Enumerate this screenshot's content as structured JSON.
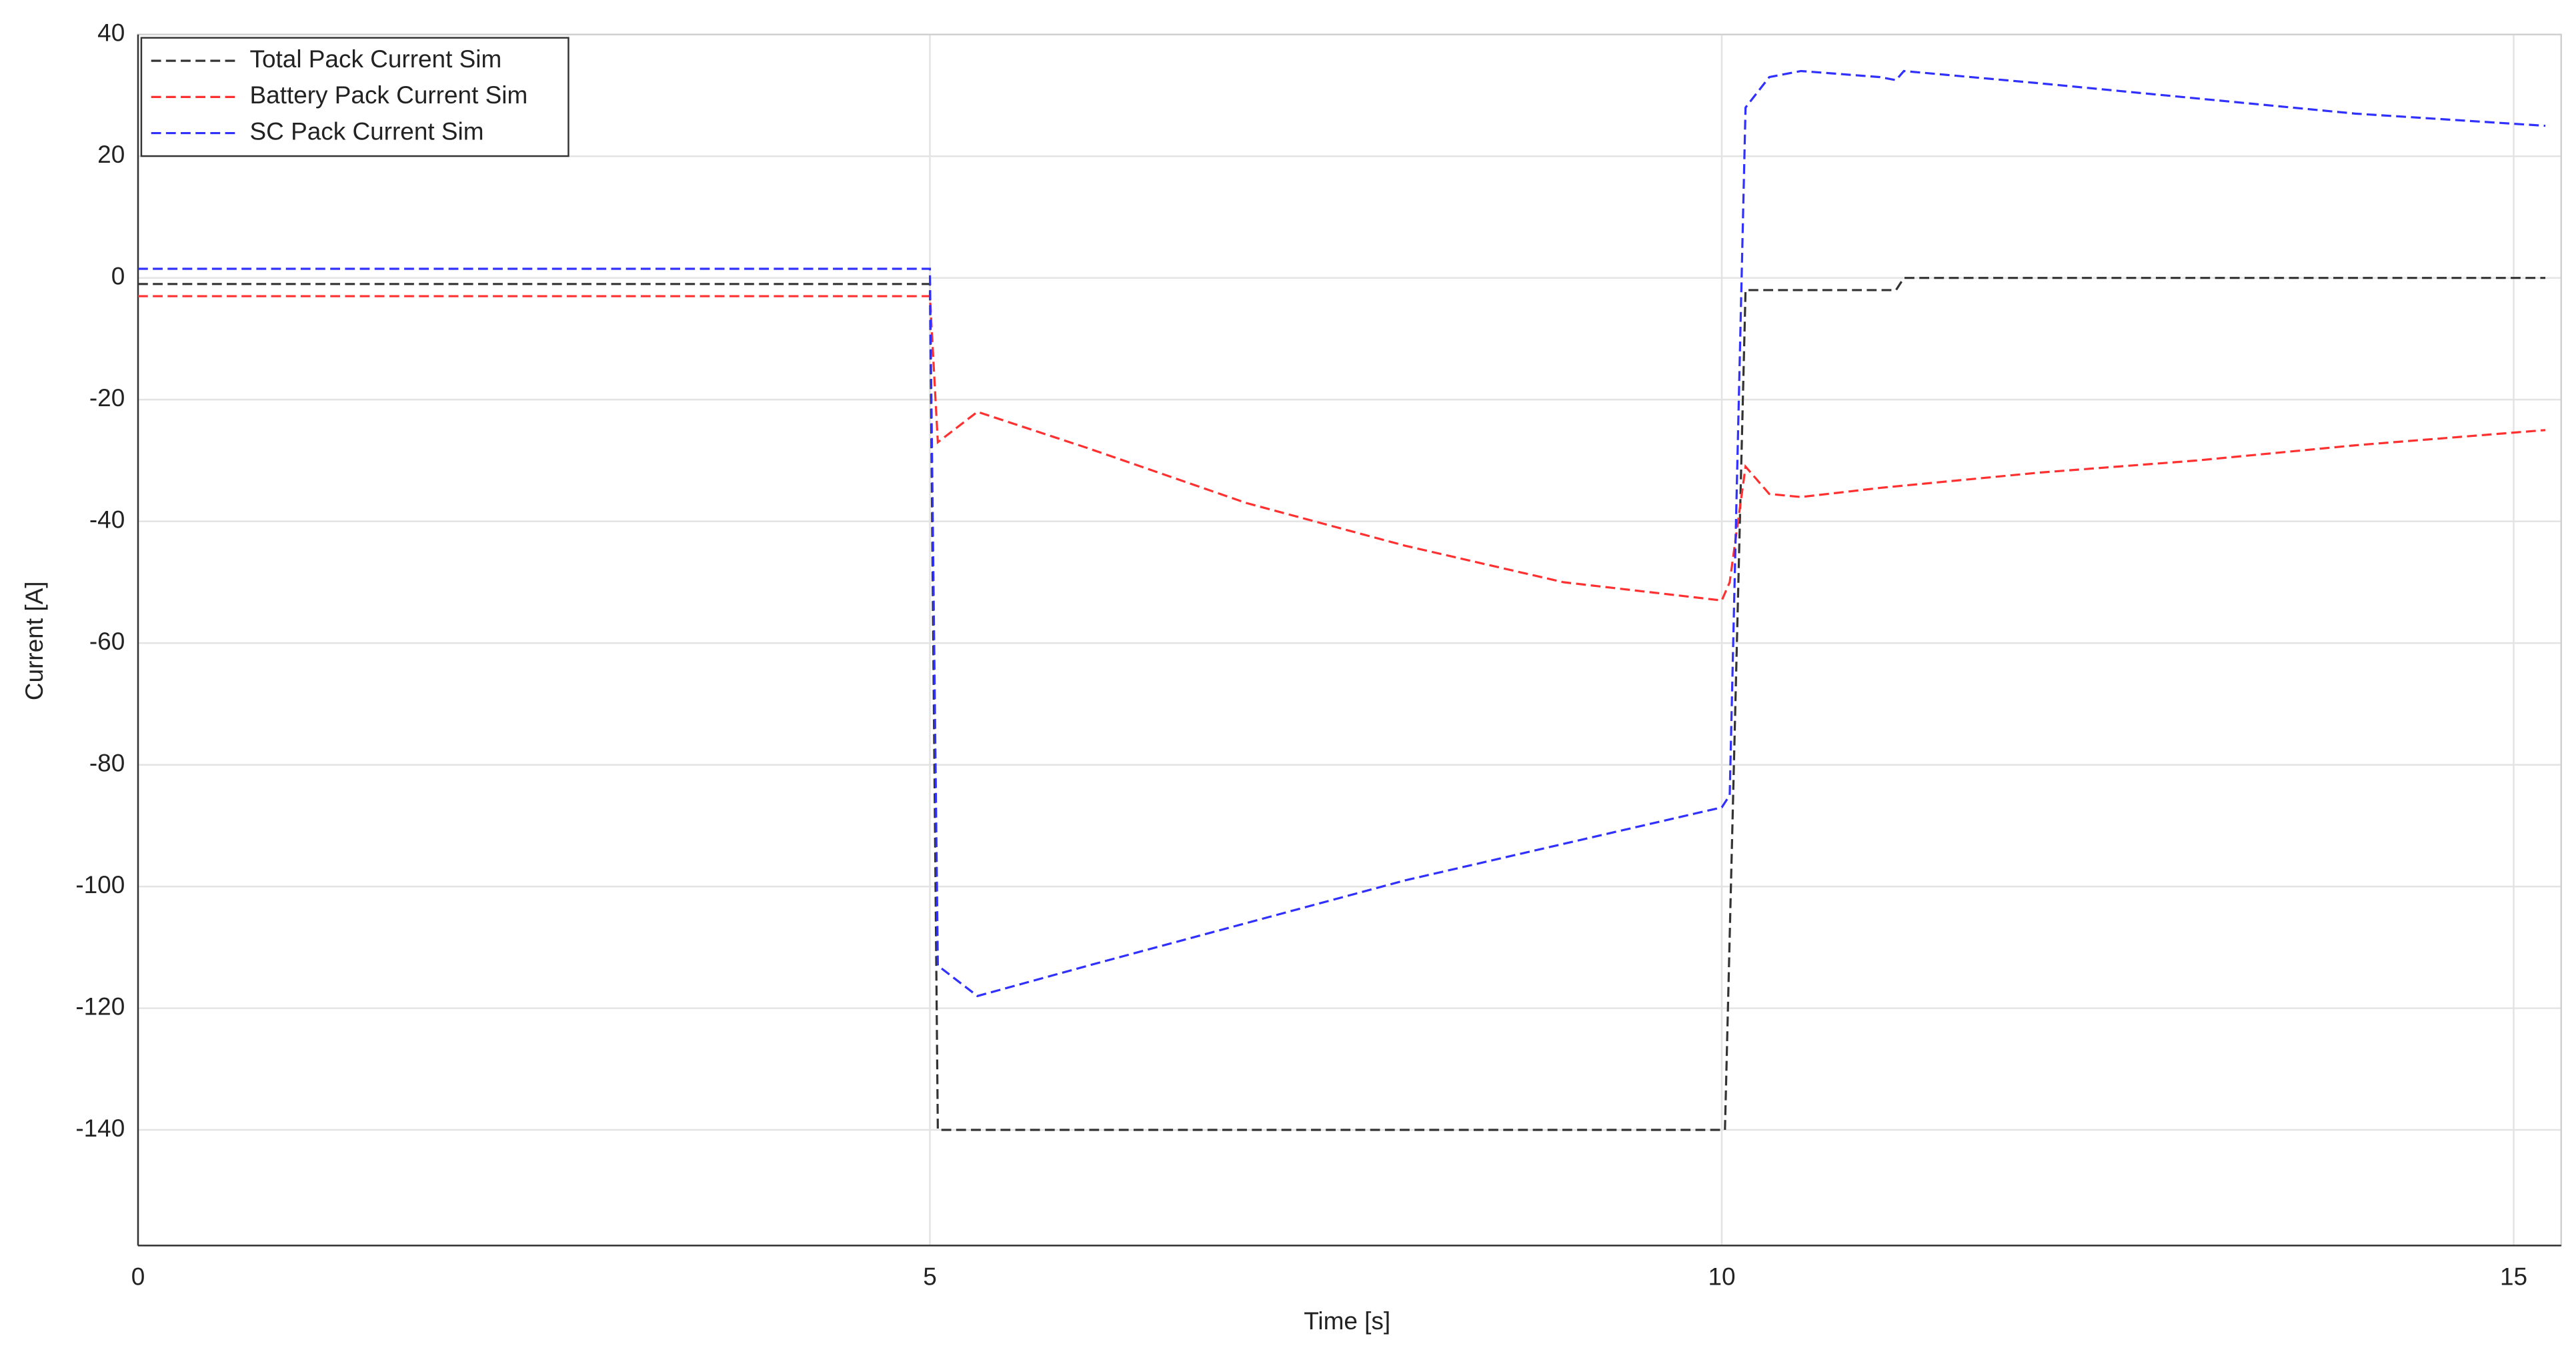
{
  "chart_data": {
    "type": "line",
    "xlabel": "Time [s]",
    "ylabel": "Current [A]",
    "xlim": [
      0,
      15.3
    ],
    "ylim": [
      -159,
      40
    ],
    "xticks": [
      0,
      5,
      10,
      15
    ],
    "yticks": [
      -140,
      -120,
      -100,
      -80,
      -60,
      -40,
      -20,
      0,
      20,
      40
    ],
    "grid": true,
    "legend": "upper-left",
    "series": [
      {
        "name": "Total Pack Current Sim",
        "color": "#333333",
        "x": [
          0,
          5,
          5.05,
          10.02,
          10.15,
          11.1,
          11.15,
          15.2
        ],
        "values": [
          -1,
          -1,
          -140,
          -140,
          -2,
          -2,
          0,
          0
        ]
      },
      {
        "name": "Battery Pack Current Sim",
        "color": "#ff3030",
        "x": [
          0,
          5,
          5.05,
          5.3,
          6,
          7,
          8,
          9,
          10,
          10.05,
          10.15,
          10.3,
          10.5,
          11,
          12,
          13,
          14,
          15.2
        ],
        "values": [
          -3,
          -3,
          -27,
          -22,
          -28,
          -37,
          -44,
          -50,
          -53,
          -50,
          -31,
          -35.5,
          -36,
          -34.5,
          -32,
          -30,
          -27.5,
          -25
        ]
      },
      {
        "name": "SC Pack Current Sim",
        "color": "#3030ff",
        "x": [
          0,
          5,
          5.05,
          5.3,
          6,
          7,
          8,
          9,
          10,
          10.05,
          10.15,
          10.3,
          10.5,
          11,
          11.1,
          11.15,
          12,
          13,
          14,
          15.2
        ],
        "values": [
          1.5,
          1.5,
          -113,
          -118,
          -113,
          -106,
          -99,
          -93,
          -87,
          -85,
          28,
          33,
          34,
          33,
          32.5,
          34,
          32,
          29.5,
          27,
          25
        ]
      }
    ]
  }
}
